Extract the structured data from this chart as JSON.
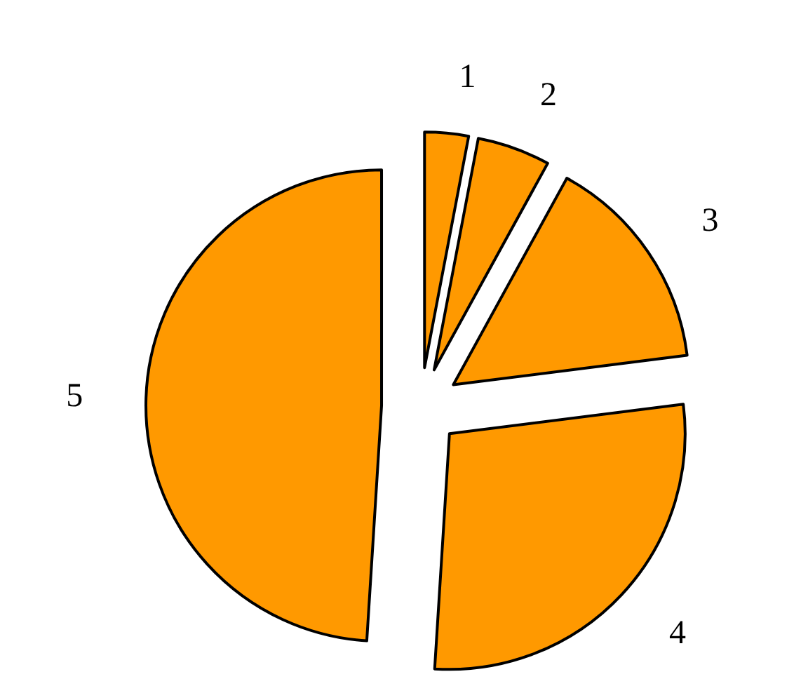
{
  "chart_data": {
    "type": "pie",
    "categories": [
      "1",
      "2",
      "3",
      "4",
      "5"
    ],
    "values": [
      3,
      5,
      15,
      28,
      49
    ],
    "colors": [
      "#ff9900",
      "#ff9900",
      "#ff9900",
      "#ff9900",
      "#ff9900"
    ]
  }
}
